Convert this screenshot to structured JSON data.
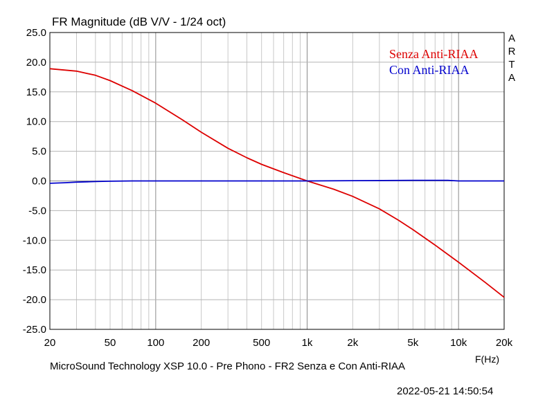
{
  "chart_data": {
    "type": "line",
    "title": "FR Magnitude (dB V/V - 1/24 oct)",
    "xlabel": "F(Hz)",
    "ylabel": "",
    "x_scale": "log",
    "xlim": [
      20,
      20000
    ],
    "ylim": [
      -25,
      25
    ],
    "grid": true,
    "legend_position": "top-right",
    "x_ticks": [
      {
        "value": 20,
        "label": "20"
      },
      {
        "value": 50,
        "label": "50"
      },
      {
        "value": 100,
        "label": "100"
      },
      {
        "value": 200,
        "label": "200"
      },
      {
        "value": 500,
        "label": "500"
      },
      {
        "value": 1000,
        "label": "1k"
      },
      {
        "value": 2000,
        "label": "2k"
      },
      {
        "value": 5000,
        "label": "5k"
      },
      {
        "value": 10000,
        "label": "10k"
      },
      {
        "value": 20000,
        "label": "20k"
      }
    ],
    "y_ticks": [
      "25.0",
      "20.0",
      "15.0",
      "10.0",
      "5.0",
      "0.0",
      "-5.0",
      "-10.0",
      "-15.0",
      "-20.0",
      "-25.0"
    ],
    "series": [
      {
        "name": "Senza Anti-RIAA",
        "color": "#dd0000",
        "x": [
          20,
          30,
          40,
          50,
          70,
          100,
          150,
          200,
          300,
          400,
          500,
          700,
          1000,
          1500,
          2000,
          3000,
          4000,
          5000,
          7000,
          10000,
          15000,
          20000
        ],
        "y": [
          18.9,
          18.5,
          17.8,
          16.9,
          15.2,
          13.1,
          10.3,
          8.2,
          5.5,
          3.9,
          2.8,
          1.4,
          0.0,
          -1.4,
          -2.6,
          -4.7,
          -6.6,
          -8.2,
          -10.8,
          -13.7,
          -17.1,
          -19.6
        ]
      },
      {
        "name": "Con Anti-RIAA",
        "color": "#0000cc",
        "x": [
          20,
          25,
          30,
          40,
          50,
          70,
          100,
          200,
          500,
          1000,
          2000,
          5000,
          8500,
          10000,
          20000
        ],
        "y": [
          -0.4,
          -0.3,
          -0.2,
          -0.1,
          -0.05,
          0.0,
          0.0,
          0.0,
          0.0,
          0.0,
          0.05,
          0.1,
          0.1,
          0.0,
          0.0
        ]
      }
    ]
  },
  "side_label": [
    "A",
    "R",
    "T",
    "A"
  ],
  "caption": "MicroSound Technology XSP 10.0 - Pre Phono - FR2 Senza e Con Anti-RIAA",
  "timestamp": "2022-05-21   14:50:54"
}
